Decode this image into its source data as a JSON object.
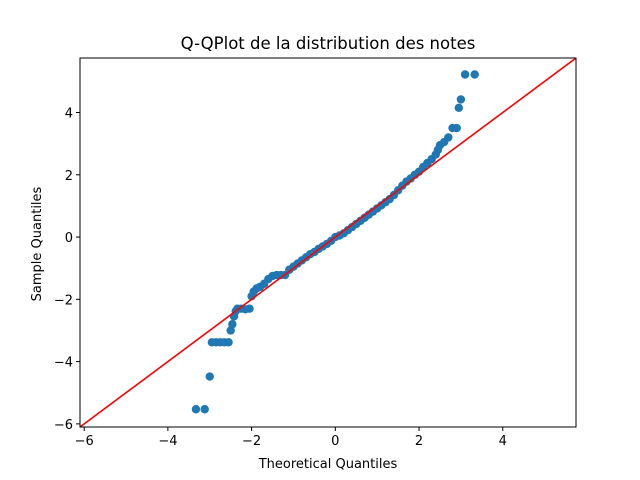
{
  "chart_data": {
    "type": "scatter",
    "title": "Q-QPlot de la distribution des notes",
    "xlabel": "Theoretical Quantiles",
    "ylabel": "Sample Quantiles",
    "xlim": [
      -6.1,
      5.75
    ],
    "ylim": [
      -6.1,
      5.75
    ],
    "xticks": [
      -6,
      -4,
      -2,
      0,
      2,
      4
    ],
    "yticks": [
      -6,
      -4,
      -2,
      0,
      2,
      4
    ],
    "grid": false,
    "colors": {
      "points": "#1f77b4",
      "reference_line": "#ff0000",
      "axes": "#000000"
    },
    "reference_line": {
      "x": [
        -6.1,
        5.75
      ],
      "y": [
        -6.1,
        5.75
      ]
    },
    "series": [
      {
        "points": [
          [
            -3.33,
            -5.53
          ],
          [
            -3.12,
            -5.53
          ],
          [
            -3.0,
            -4.48
          ],
          [
            -2.95,
            -3.38
          ],
          [
            -2.85,
            -3.38
          ],
          [
            -2.75,
            -3.38
          ],
          [
            -2.65,
            -3.38
          ],
          [
            -2.55,
            -3.38
          ],
          [
            -2.5,
            -3.0
          ],
          [
            -2.46,
            -2.8
          ],
          [
            -2.42,
            -2.55
          ],
          [
            -2.38,
            -2.38
          ],
          [
            -2.34,
            -2.3
          ],
          [
            -2.25,
            -2.3
          ],
          [
            -2.15,
            -2.32
          ],
          [
            -2.05,
            -2.3
          ],
          [
            -2.0,
            -1.9
          ],
          [
            -1.95,
            -1.75
          ],
          [
            -1.88,
            -1.65
          ],
          [
            -1.8,
            -1.6
          ],
          [
            -1.7,
            -1.5
          ],
          [
            -1.6,
            -1.35
          ],
          [
            -1.5,
            -1.25
          ],
          [
            -1.4,
            -1.22
          ],
          [
            -1.3,
            -1.22
          ],
          [
            -1.2,
            -1.22
          ],
          [
            -1.1,
            -1.05
          ],
          [
            -1.0,
            -0.95
          ],
          [
            -0.9,
            -0.85
          ],
          [
            -0.8,
            -0.75
          ],
          [
            -0.7,
            -0.65
          ],
          [
            -0.6,
            -0.55
          ],
          [
            -0.5,
            -0.48
          ],
          [
            -0.4,
            -0.38
          ],
          [
            -0.3,
            -0.3
          ],
          [
            -0.2,
            -0.22
          ],
          [
            -0.1,
            -0.12
          ],
          [
            0.0,
            0.0
          ],
          [
            0.1,
            0.05
          ],
          [
            0.2,
            0.12
          ],
          [
            0.3,
            0.22
          ],
          [
            0.4,
            0.32
          ],
          [
            0.5,
            0.42
          ],
          [
            0.6,
            0.52
          ],
          [
            0.7,
            0.62
          ],
          [
            0.8,
            0.72
          ],
          [
            0.9,
            0.82
          ],
          [
            1.0,
            0.92
          ],
          [
            1.1,
            1.02
          ],
          [
            1.2,
            1.12
          ],
          [
            1.3,
            1.22
          ],
          [
            1.4,
            1.35
          ],
          [
            1.5,
            1.5
          ],
          [
            1.6,
            1.65
          ],
          [
            1.7,
            1.78
          ],
          [
            1.8,
            1.88
          ],
          [
            1.9,
            2.0
          ],
          [
            2.0,
            2.1
          ],
          [
            2.1,
            2.25
          ],
          [
            2.2,
            2.38
          ],
          [
            2.3,
            2.5
          ],
          [
            2.4,
            2.65
          ],
          [
            2.45,
            2.8
          ],
          [
            2.5,
            2.95
          ],
          [
            2.6,
            3.05
          ],
          [
            2.7,
            3.2
          ],
          [
            2.8,
            3.5
          ],
          [
            2.9,
            3.5
          ],
          [
            2.95,
            4.15
          ],
          [
            3.0,
            4.42
          ],
          [
            3.1,
            5.22
          ],
          [
            3.33,
            5.22
          ]
        ]
      }
    ]
  }
}
